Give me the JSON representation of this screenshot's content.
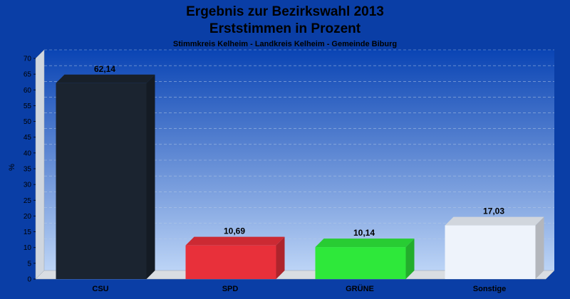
{
  "chart_data": {
    "type": "bar",
    "title": "Ergebnis zur Bezirkswahl 2013",
    "subtitle": "Erststimmen in Prozent",
    "subtitle2": "Stimmkreis Kelheim - Landkreis Kelheim - Gemeinde Biburg",
    "ylabel": "%",
    "xlabel": "",
    "ylim": [
      0,
      70
    ],
    "ytick_step": 5,
    "grid": true,
    "categories": [
      "CSU",
      "SPD",
      "GRÜNE",
      "Sonstige"
    ],
    "values": [
      62.14,
      10.69,
      10.14,
      17.03
    ],
    "value_labels": [
      "62,14",
      "10,69",
      "10,14",
      "17,03"
    ],
    "colors": [
      "#1b2430",
      "#e8303a",
      "#2ee83a",
      "#eef3fb"
    ]
  }
}
